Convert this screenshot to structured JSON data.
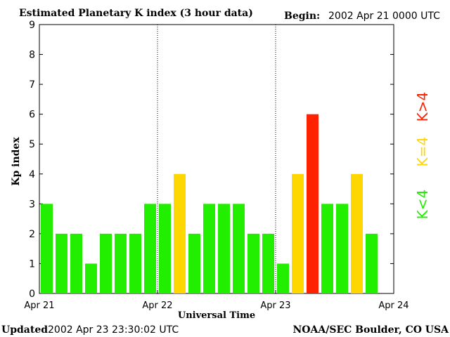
{
  "header": {
    "title": "Estimated Planetary K index (3 hour data)",
    "begin_label": "Begin:",
    "begin_value": "2002 Apr 21 0000 UTC"
  },
  "footer": {
    "updated_label": "Updated",
    "updated_value": "2002 Apr 23 23:30:02 UTC",
    "credit": "NOAA/SEC Boulder, CO USA"
  },
  "legend": {
    "gt4_label": "K>4",
    "eq4_label": "K=4",
    "lt4_label": "K<4",
    "placement": "right"
  },
  "colors": {
    "lt4": "#22ee00",
    "eq4": "#ffd700",
    "gt4": "#ff2200"
  },
  "chart_data": {
    "type": "bar",
    "xlabel": "Universal Time",
    "ylabel": "Kp index",
    "ylim": [
      0,
      9
    ],
    "yticks": [
      "0",
      "1",
      "2",
      "3",
      "4",
      "5",
      "6",
      "7",
      "8",
      "9"
    ],
    "xticks": [
      "Apr 21",
      "Apr 22",
      "Apr 23",
      "Apr 24"
    ],
    "bars_per_day": 8,
    "day_separators": "dotted",
    "values": [
      3,
      2,
      2,
      1,
      2,
      2,
      2,
      3,
      3,
      4,
      2,
      3,
      3,
      3,
      2,
      2,
      1,
      4,
      6,
      3,
      3,
      4,
      2
    ]
  }
}
